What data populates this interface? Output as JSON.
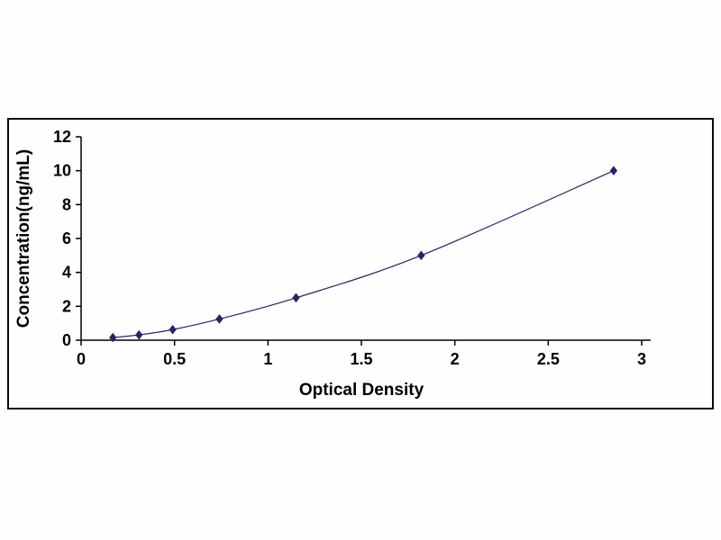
{
  "chart_data": {
    "type": "line",
    "title": "",
    "xlabel": "Optical Density",
    "ylabel": "Concentration(ng/mL)",
    "x": [
      0.17,
      0.31,
      0.49,
      0.74,
      1.15,
      1.82,
      2.85
    ],
    "y": [
      0.156,
      0.312,
      0.625,
      1.25,
      2.5,
      5,
      10
    ],
    "xlim": [
      0,
      3
    ],
    "ylim": [
      0,
      12
    ],
    "xtick_labels": [
      "0",
      "0.5",
      "1",
      "1.5",
      "2",
      "2.5",
      "3"
    ],
    "ytick_labels": [
      "0",
      "2",
      "4",
      "6",
      "8",
      "10",
      "12"
    ],
    "grid": false,
    "legend": "none",
    "marker": "diamond",
    "line_color": "#26246e",
    "marker_color": "#26246e",
    "axis_color": "#000000",
    "text_color": "#000000"
  }
}
